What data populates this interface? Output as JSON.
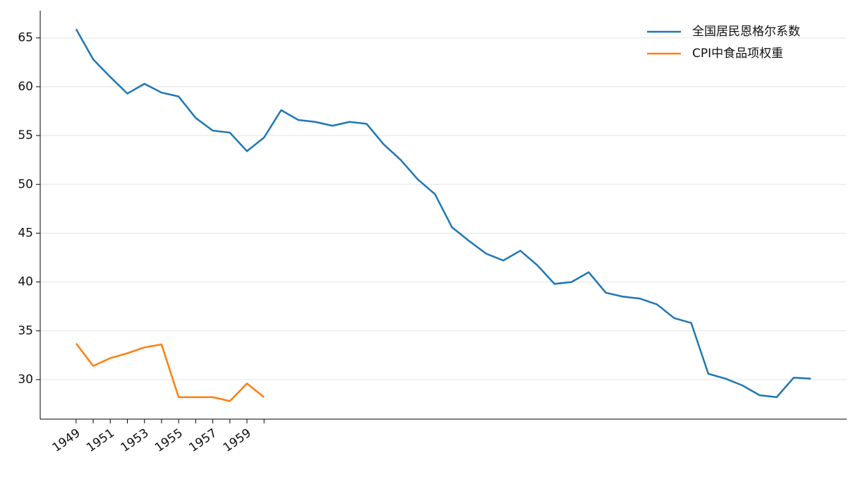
{
  "chart_data": {
    "type": "line",
    "x": [
      1949,
      1950,
      1951,
      1952,
      1953,
      1954,
      1955,
      1956,
      1957,
      1958,
      1959,
      1960,
      1961,
      1962,
      1963,
      1964,
      1965,
      1966,
      1967,
      1968,
      1969,
      1970,
      1971,
      1972,
      1973,
      1974,
      1975,
      1976,
      1977,
      1978,
      1979,
      1980,
      1981,
      1982,
      1983,
      1984,
      1985,
      1986,
      1987,
      1988,
      1989,
      1990,
      1991,
      1992
    ],
    "series": [
      {
        "name": "全国居民恩格尔系数",
        "color": "#1f77b4",
        "values": [
          65.9,
          62.8,
          61.0,
          59.3,
          60.3,
          59.4,
          59.0,
          56.8,
          55.5,
          55.3,
          53.4,
          54.8,
          57.6,
          56.6,
          56.4,
          56.0,
          56.4,
          56.2,
          54.1,
          52.5,
          50.5,
          49.0,
          45.6,
          44.2,
          42.9,
          42.2,
          43.2,
          41.7,
          39.8,
          40.0,
          41.0,
          38.9,
          38.5,
          38.3,
          37.7,
          36.3,
          35.8,
          30.6,
          30.1,
          29.4,
          28.4,
          28.2,
          30.2,
          30.1
        ]
      },
      {
        "name": "CPI中食品项权重",
        "color": "#ff7f0e",
        "values": [
          33.7,
          31.4,
          32.2,
          32.7,
          33.3,
          33.6,
          28.2,
          28.2,
          28.2,
          27.8,
          29.6,
          28.2,
          null,
          null,
          null,
          null,
          null,
          null,
          null,
          null,
          null,
          null,
          null,
          null,
          null,
          null,
          null,
          null,
          null,
          null,
          null,
          null,
          null,
          null,
          null,
          null,
          null,
          null,
          null,
          null,
          null,
          null,
          null,
          null
        ]
      }
    ],
    "xlim": [
      1946.9,
      1994.1
    ],
    "xticks": [
      1949,
      1951,
      1953,
      1955,
      1957,
      1959
    ],
    "xminorticks": [
      1950,
      1952,
      1954,
      1956,
      1958,
      1960
    ],
    "ylim": [
      25.95,
      67.8
    ],
    "yticks": [
      30,
      35,
      40,
      45,
      50,
      55,
      60,
      65
    ],
    "grid": true,
    "legend": "upper right"
  }
}
